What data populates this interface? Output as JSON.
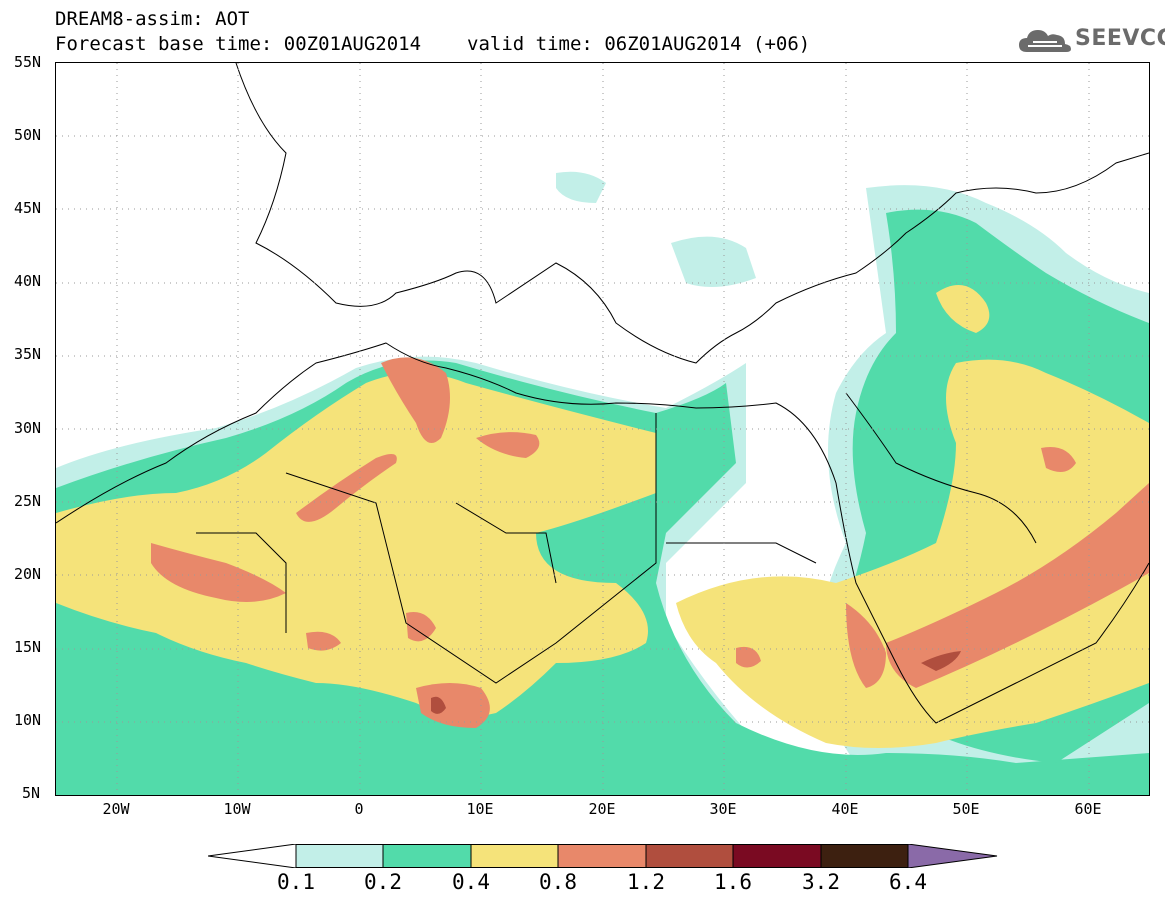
{
  "header": {
    "title_line1": "DREAM8-assim: AOT",
    "base_time": "Forecast base time: 00Z01AUG2014",
    "valid_time": "valid time: 06Z01AUG2014 (+06)"
  },
  "logo": {
    "text": "SEEVCCC",
    "icon": "cloud-icon",
    "color": "#6b6b6b"
  },
  "axes": {
    "lat_labels": [
      "55N",
      "50N",
      "45N",
      "40N",
      "35N",
      "30N",
      "25N",
      "20N",
      "15N",
      "10N",
      "5N"
    ],
    "lon_labels": [
      "20W",
      "10W",
      "0",
      "10E",
      "20E",
      "30E",
      "40E",
      "50E",
      "60E"
    ],
    "lon_range": [
      -25,
      65
    ],
    "lat_range": [
      5,
      55
    ],
    "grid": "dotted"
  },
  "colorbar": {
    "labels": [
      "0.1",
      "0.2",
      "0.4",
      "0.8",
      "1.2",
      "1.6",
      "3.2",
      "6.4"
    ],
    "colors": [
      "#ffffff",
      "#c2efe8",
      "#52dbaa",
      "#f5e37a",
      "#e8886a",
      "#b04e3e",
      "#7a0a22",
      "#3d2010",
      "#8a6aa8"
    ]
  }
}
